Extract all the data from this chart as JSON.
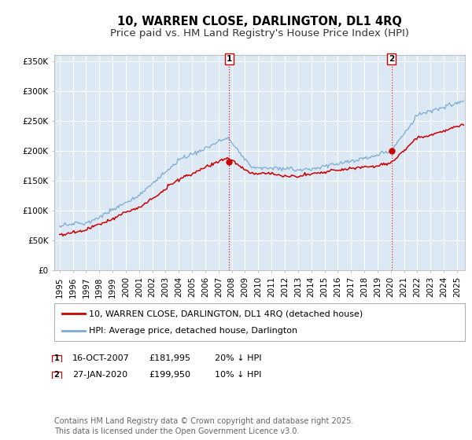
{
  "title": "10, WARREN CLOSE, DARLINGTON, DL1 4RQ",
  "subtitle": "Price paid vs. HM Land Registry's House Price Index (HPI)",
  "background_color": "#ffffff",
  "plot_bg_color": "#dde8f5",
  "grid_color": "#ffffff",
  "red_line_color": "#cc0000",
  "blue_line_color": "#7aadd4",
  "vline_color": "#cc0000",
  "ylim": [
    0,
    360000
  ],
  "yticks": [
    0,
    50000,
    100000,
    150000,
    200000,
    250000,
    300000,
    350000
  ],
  "ytick_labels": [
    "£0",
    "£50K",
    "£100K",
    "£150K",
    "£200K",
    "£250K",
    "£300K",
    "£350K"
  ],
  "xmin": 1994.6,
  "xmax": 2025.6,
  "legend_line1": "10, WARREN CLOSE, DARLINGTON, DL1 4RQ (detached house)",
  "legend_line2": "HPI: Average price, detached house, Darlington",
  "marker1_x": 2007.79,
  "marker1_y": 181995,
  "marker2_x": 2020.07,
  "marker2_y": 199950,
  "marker1_date": "16-OCT-2007",
  "marker1_price": "£181,995",
  "marker1_hpi": "20% ↓ HPI",
  "marker2_date": "27-JAN-2020",
  "marker2_price": "£199,950",
  "marker2_hpi": "10% ↓ HPI",
  "footer": "Contains HM Land Registry data © Crown copyright and database right 2025.\nThis data is licensed under the Open Government Licence v3.0.",
  "title_fontsize": 10.5,
  "subtitle_fontsize": 9.5,
  "tick_fontsize": 7.5,
  "legend_fontsize": 8.0,
  "footer_fontsize": 7.0
}
